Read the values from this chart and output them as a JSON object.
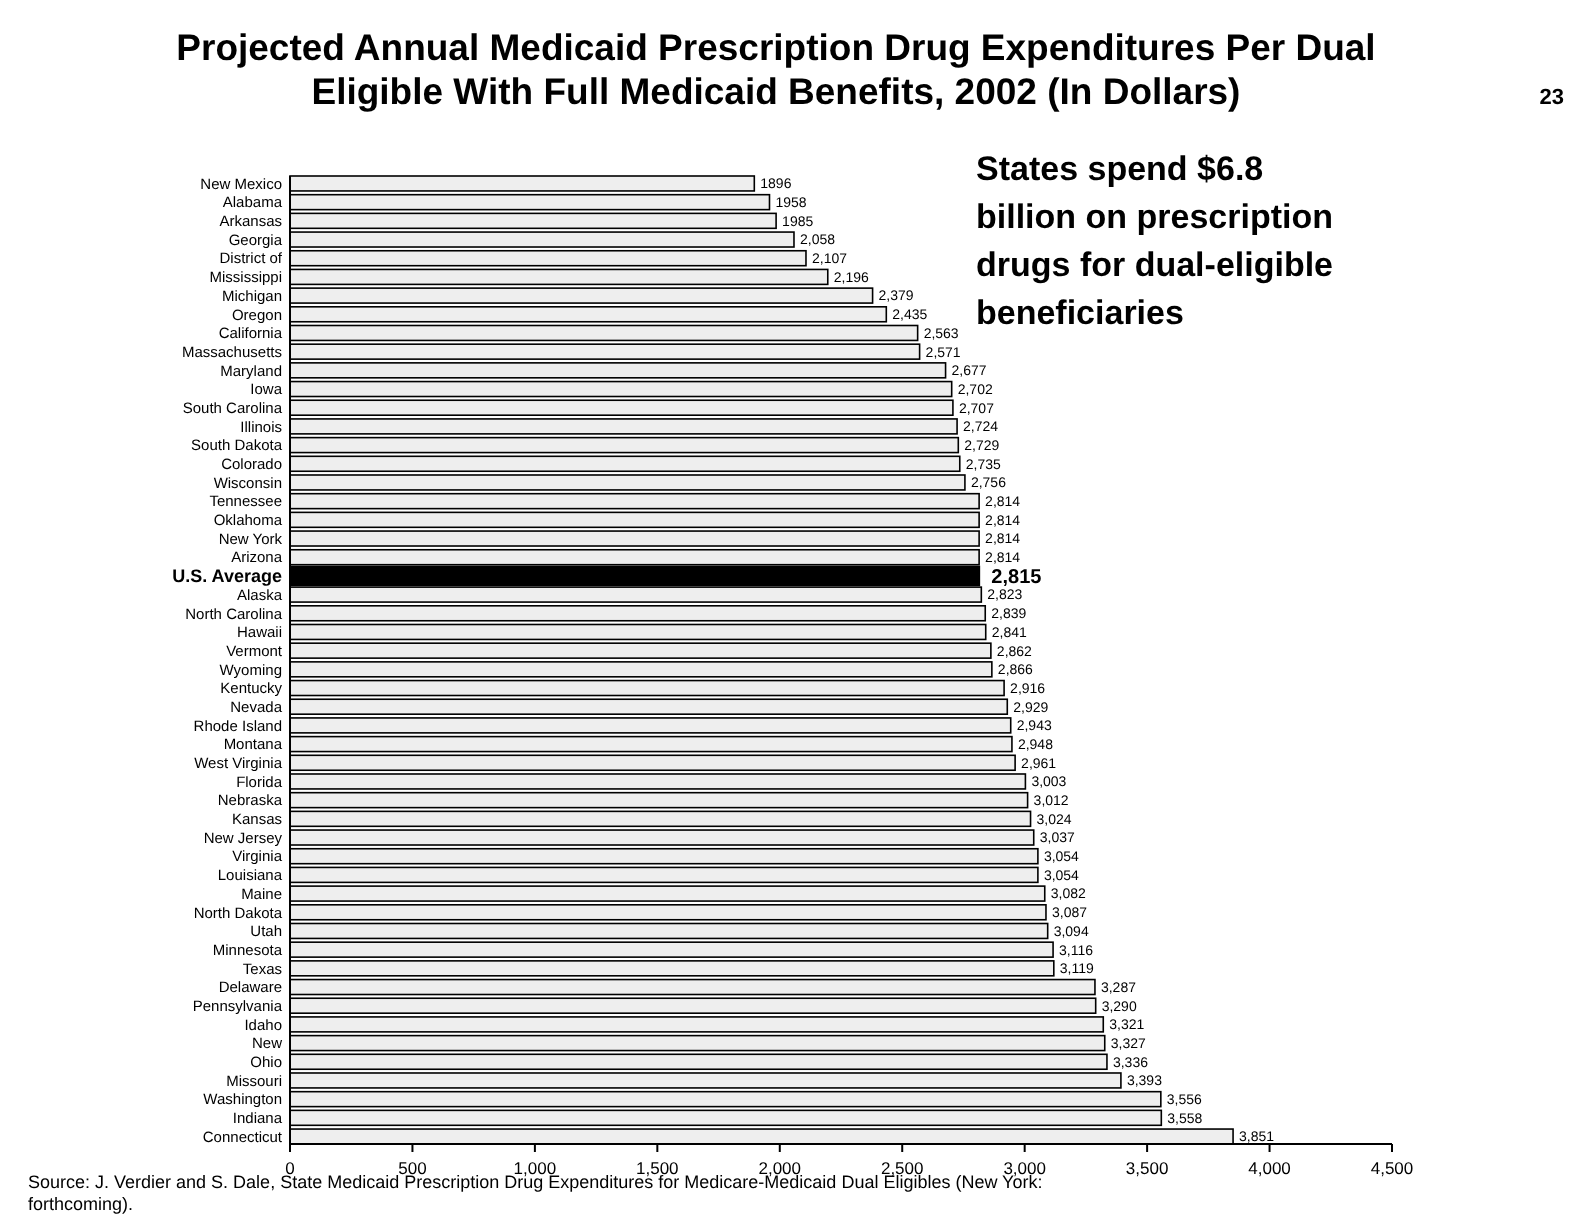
{
  "chart_data": {
    "type": "bar",
    "orientation": "horizontal",
    "title": "Projected  Annual Medicaid Prescription Drug Expenditures Per Dual Eligible With Full Medicaid Benefits, 2002 (In Dollars)",
    "categories": [
      "New Mexico",
      "Alabama",
      "Arkansas",
      "Georgia",
      "District of",
      "Mississippi",
      "Michigan",
      "Oregon",
      "California",
      "Massachusetts",
      "Maryland",
      "Iowa",
      "South Carolina",
      "Illinois",
      "South Dakota",
      "Colorado",
      "Wisconsin",
      "Tennessee",
      "Oklahoma",
      "New York",
      "Arizona",
      "U.S. Average",
      "Alaska",
      "North Carolina",
      "Hawaii",
      "Vermont",
      "Wyoming",
      "Kentucky",
      "Nevada",
      "Rhode Island",
      "Montana",
      "West Virginia",
      "Florida",
      "Nebraska",
      "Kansas",
      "New Jersey",
      "Virginia",
      "Louisiana",
      "Maine",
      "North Dakota",
      "Utah",
      "Minnesota",
      "Texas",
      "Delaware",
      "Pennsylvania",
      "Idaho",
      "New",
      "Ohio",
      "Missouri",
      "Washington",
      "Indiana",
      "Connecticut"
    ],
    "values": [
      1896,
      1958,
      1985,
      2058,
      2107,
      2196,
      2379,
      2435,
      2563,
      2571,
      2677,
      2702,
      2707,
      2724,
      2729,
      2735,
      2756,
      2814,
      2814,
      2814,
      2814,
      2815,
      2823,
      2839,
      2841,
      2862,
      2866,
      2916,
      2929,
      2943,
      2948,
      2961,
      3003,
      3012,
      3024,
      3037,
      3054,
      3054,
      3082,
      3087,
      3094,
      3116,
      3119,
      3287,
      3290,
      3321,
      3327,
      3336,
      3393,
      3556,
      3558,
      3851
    ],
    "value_labels": [
      "1896",
      "1958",
      "1985",
      "2,058",
      "2,107",
      "2,196",
      "2,379",
      "2,435",
      "2,563",
      "2,571",
      "2,677",
      "2,702",
      "2,707",
      "2,724",
      "2,729",
      "2,735",
      "2,756",
      "2,814",
      "2,814",
      "2,814",
      "2,814",
      "2,815",
      "2,823",
      "2,839",
      "2,841",
      "2,862",
      "2,866",
      "2,916",
      "2,929",
      "2,943",
      "2,948",
      "2,961",
      "3,003",
      "3,012",
      "3,024",
      "3,037",
      "3,054",
      "3,054",
      "3,082",
      "3,087",
      "3,094",
      "3,116",
      "3,119",
      "3,287",
      "3,290",
      "3,321",
      "3,327",
      "3,336",
      "3,393",
      "3,556",
      "3,558",
      "3,851"
    ],
    "colors": [
      "#eeeeee",
      "#eeeeee",
      "#eeeeee",
      "#eeeeee",
      "#eeeeee",
      "#eeeeee",
      "#eeeeee",
      "#eeeeee",
      "#eeeeee",
      "#eeeeee",
      "#eeeeee",
      "#eeeeee",
      "#eeeeee",
      "#eeeeee",
      "#eeeeee",
      "#eeeeee",
      "#eeeeee",
      "#eeeeee",
      "#eeeeee",
      "#eeeeee",
      "#eeeeee",
      "#000000",
      "#eeeeee",
      "#eeeeee",
      "#eeeeee",
      "#eeeeee",
      "#eeeeee",
      "#eeeeee",
      "#eeeeee",
      "#eeeeee",
      "#eeeeee",
      "#eeeeee",
      "#eeeeee",
      "#eeeeee",
      "#eeeeee",
      "#eeeeee",
      "#eeeeee",
      "#eeeeee",
      "#eeeeee",
      "#eeeeee",
      "#eeeeee",
      "#eeeeee",
      "#eeeeee",
      "#eeeeee",
      "#eeeeee",
      "#eeeeee",
      "#eeeeee",
      "#eeeeee",
      "#eeeeee",
      "#eeeeee",
      "#eeeeee",
      "#eeeeee"
    ],
    "xlim": [
      0,
      4500
    ],
    "xticks": [
      0,
      500,
      {
        "value": 1000,
        "label": "1,000"
      },
      {
        "value": 1500,
        "label": "1,500"
      },
      {
        "value": 2000,
        "label": "2,000"
      },
      {
        "value": 2500,
        "label": "2,500"
      },
      {
        "value": 3000,
        "label": "3,000"
      },
      {
        "value": 3500,
        "label": "3,500"
      },
      {
        "value": 4000,
        "label": "4,000"
      },
      {
        "value": 4500,
        "label": "4,500"
      }
    ],
    "grid": false,
    "annotations": [
      "23",
      "States spend $6.8 billion on prescription drugs for dual-eligible beneficiaries",
      "Source: J. Verdier and S. Dale, State Medicaid Prescription Drug Expenditures for Medicare-Medicaid Dual Eligibles (New York: forthcoming)."
    ]
  }
}
